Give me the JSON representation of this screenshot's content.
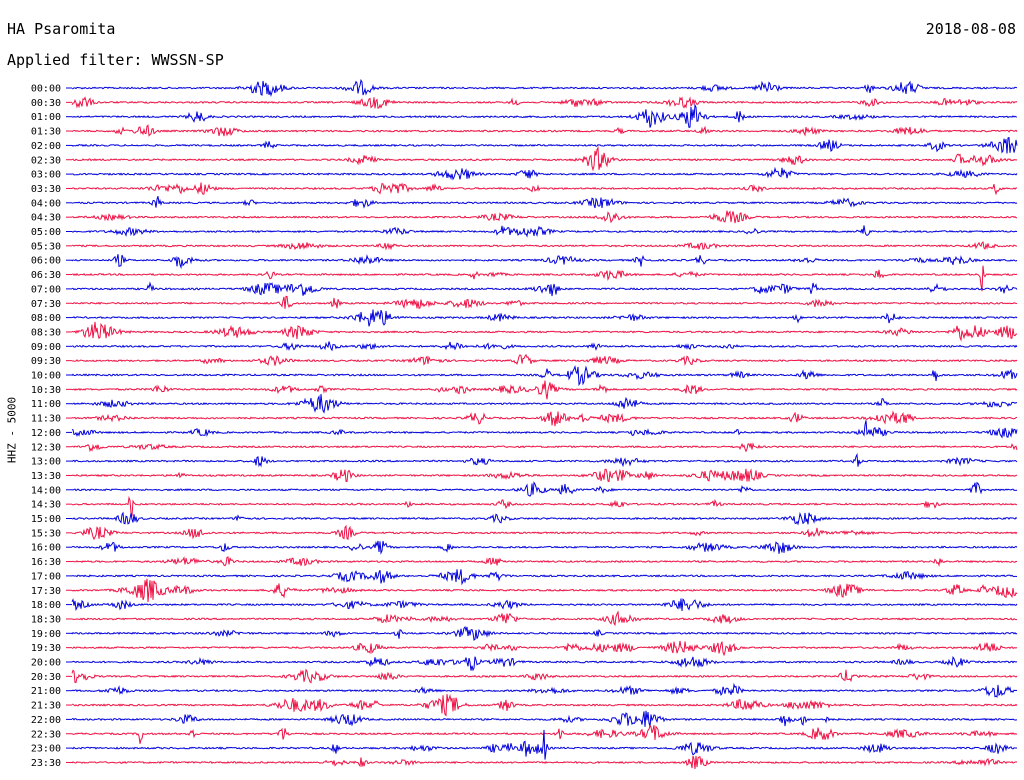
{
  "chart_data": {
    "type": "line",
    "title": "HA Psaromita",
    "date": "2018-08-08",
    "filter_label": "Applied filter: WWSSN-SP",
    "channel_label": "HHZ - 5000",
    "row_labels": [
      "00:00",
      "00:30",
      "01:00",
      "01:30",
      "02:00",
      "02:30",
      "03:00",
      "03:30",
      "04:00",
      "04:30",
      "05:00",
      "05:30",
      "06:00",
      "06:30",
      "07:00",
      "07:30",
      "08:00",
      "08:30",
      "09:00",
      "09:30",
      "10:00",
      "10:30",
      "11:00",
      "11:30",
      "12:00",
      "12:30",
      "13:00",
      "13:30",
      "14:00",
      "14:30",
      "15:00",
      "15:30",
      "16:00",
      "16:30",
      "17:00",
      "17:30",
      "18:00",
      "18:30",
      "19:00",
      "19:30",
      "20:00",
      "20:30",
      "21:00",
      "21:30",
      "22:00",
      "22:30",
      "23:00",
      "23:30"
    ],
    "colors": [
      "#0000dd",
      "#ee1144"
    ],
    "grid": false,
    "legend": "none"
  }
}
